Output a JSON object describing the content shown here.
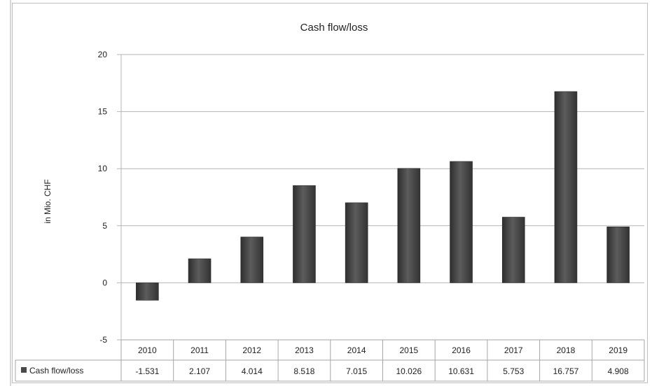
{
  "chart_data": {
    "type": "bar",
    "title": "Cash flow/loss",
    "xlabel": "",
    "ylabel": "in Mio. CHF",
    "ylim": [
      -5,
      20
    ],
    "yticks": [
      "-5",
      "0",
      "5",
      "10",
      "15",
      "20"
    ],
    "grid": true,
    "legend": "data table",
    "categories": [
      "2010",
      "2011",
      "2012",
      "2013",
      "2014",
      "2015",
      "2016",
      "2017",
      "2018",
      "2019"
    ],
    "series": [
      {
        "name": "Cash flow/loss",
        "values": [
          -1.531,
          2.107,
          4.014,
          8.518,
          7.015,
          10.026,
          10.631,
          5.753,
          16.757,
          4.908
        ],
        "labels": [
          "-1.531",
          "2.107",
          "4.014",
          "8.518",
          "7.015",
          "10.026",
          "10.631",
          "5.753",
          "16.757",
          "4.908"
        ],
        "color": "#4a4a4a"
      }
    ]
  }
}
